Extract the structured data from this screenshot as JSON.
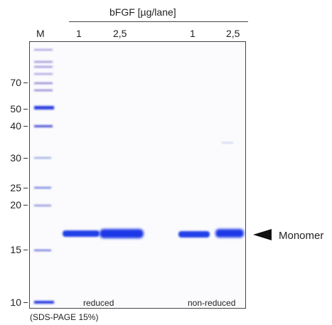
{
  "header": {
    "sample_label": "bFGF [µg/lane]",
    "lane_labels": [
      {
        "id": "M",
        "text": "M"
      },
      {
        "id": "1a",
        "text": "1"
      },
      {
        "id": "25a",
        "text": "2,5"
      },
      {
        "id": "1b",
        "text": "1"
      },
      {
        "id": "25b",
        "text": "2,5"
      }
    ]
  },
  "mw_markers": [
    "70",
    "50",
    "40",
    "30",
    "25",
    "20",
    "15",
    "10"
  ],
  "conditions": {
    "reduced": "reduced",
    "non_reduced": "non-reduced"
  },
  "annotation": {
    "band_label": "Monomer"
  },
  "footer": {
    "method": "(SDS-PAGE 15%)"
  },
  "colors": {
    "band": "#1f3fe0",
    "marker_band": "#6a5fc8",
    "border": "#444444"
  }
}
